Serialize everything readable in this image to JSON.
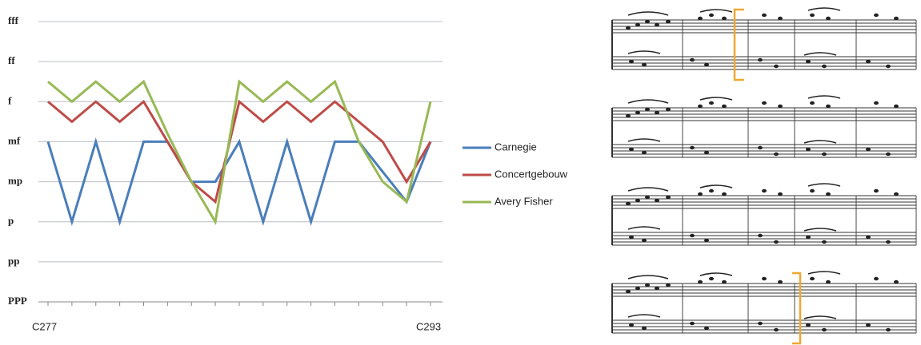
{
  "chart_data": {
    "type": "line",
    "categories": [
      "C277",
      null,
      null,
      null,
      null,
      null,
      null,
      null,
      null,
      null,
      null,
      null,
      null,
      null,
      null,
      null,
      "C293"
    ],
    "ylim": [
      0,
      7
    ],
    "yticks": [
      {
        "value": 0,
        "label": "PPP"
      },
      {
        "value": 1,
        "label": "pp"
      },
      {
        "value": 2,
        "label": "p"
      },
      {
        "value": 3,
        "label": "mp"
      },
      {
        "value": 4,
        "label": "mf"
      },
      {
        "value": 5,
        "label": "f"
      },
      {
        "value": 6,
        "label": "ff"
      },
      {
        "value": 7,
        "label": "fff"
      }
    ],
    "grid": true,
    "legend": "right",
    "series": [
      {
        "name": "Carnegie",
        "color": "#4a7ebb",
        "values": [
          4,
          2,
          4,
          2,
          4,
          4,
          3,
          3,
          4,
          2,
          4,
          2,
          4,
          4,
          3.25,
          2.5,
          4
        ]
      },
      {
        "name": "Concertgebouw",
        "color": "#be4b48",
        "values": [
          5,
          4.5,
          5,
          4.5,
          5,
          4,
          3,
          2.5,
          5,
          4.5,
          5,
          4.5,
          5,
          4.5,
          4,
          3,
          4
        ]
      },
      {
        "name": "Avery Fisher",
        "color": "#98b954",
        "values": [
          5.5,
          5,
          5.5,
          5,
          5.5,
          4.2,
          3,
          2,
          5.5,
          5,
          5.5,
          5,
          5.5,
          4,
          3,
          2.5,
          5
        ]
      }
    ]
  }
}
